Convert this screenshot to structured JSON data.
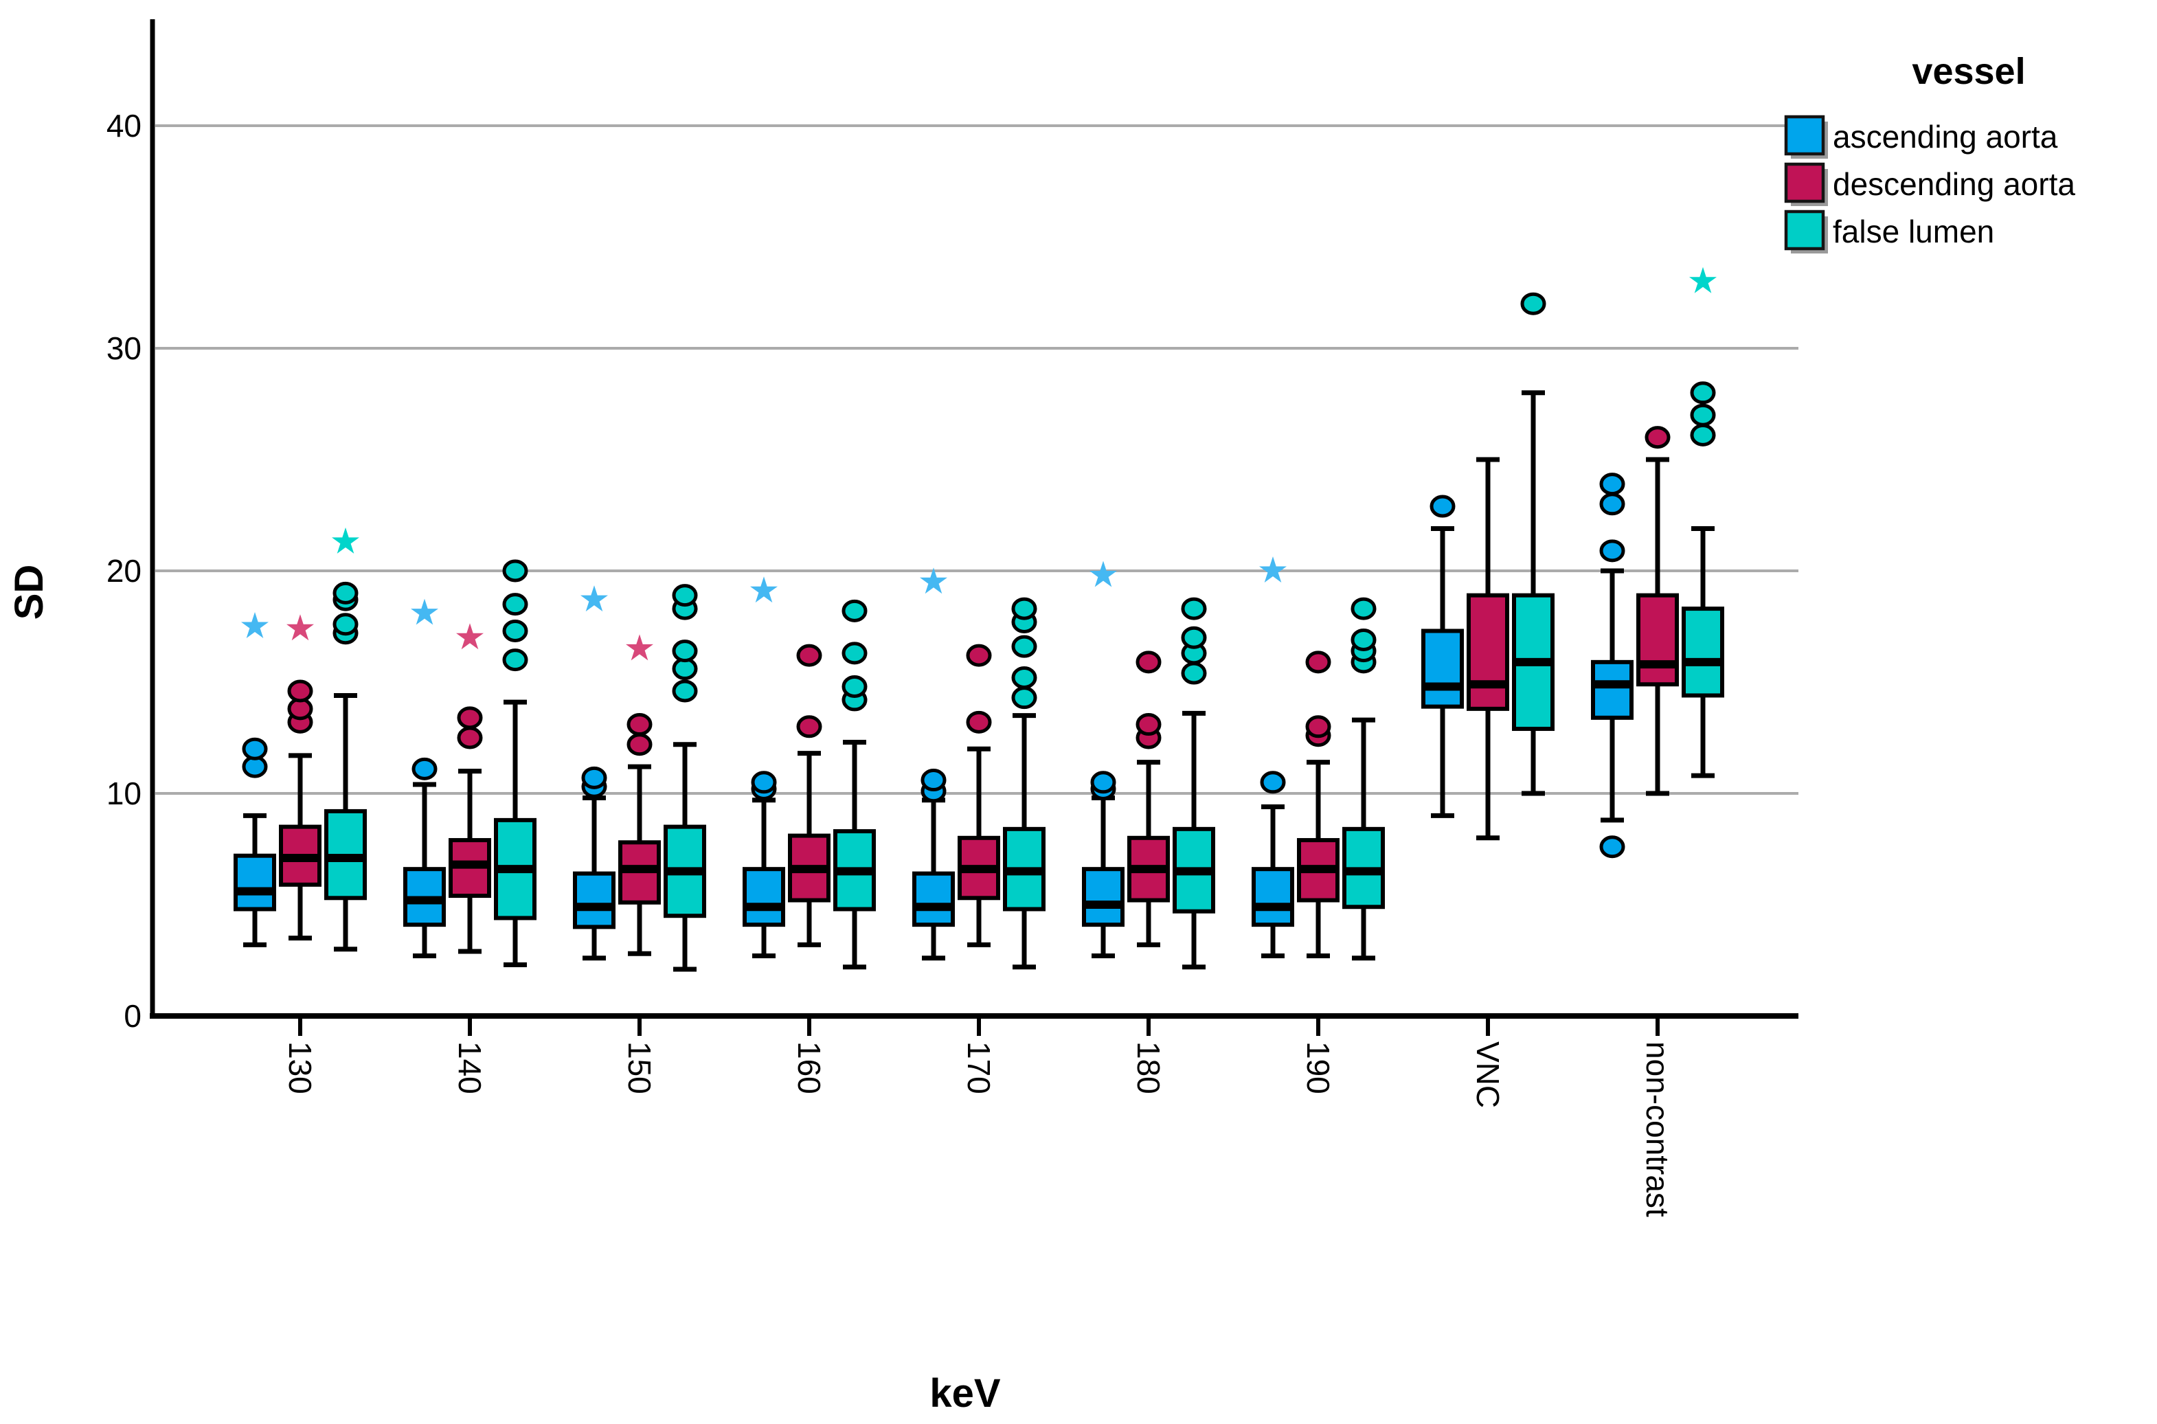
{
  "figure": {
    "background": "#ffffff"
  },
  "legend": {
    "title": "vessel",
    "items": [
      {
        "label": "ascending aorta",
        "color": "#00A5EC"
      },
      {
        "label": "descending aorta",
        "color": "#C01356"
      },
      {
        "label": "false lumen",
        "color": "#00CEC6"
      }
    ]
  },
  "chart_data": {
    "type": "box",
    "title": "",
    "xlabel": "keV",
    "ylabel": "SD",
    "ylim": [
      0,
      44
    ],
    "yticks": [
      0,
      10,
      20,
      30,
      40
    ],
    "ytick_labels": [
      "0",
      "10",
      "20",
      "30",
      "40"
    ],
    "grid": "horizontal",
    "gridline_color": "#ABABAB",
    "legend_position": "top-right",
    "categories": [
      "130",
      "140",
      "150",
      "160",
      "170",
      "180",
      "190",
      "VNC",
      "non-contrast"
    ],
    "series": [
      {
        "name": "ascending aorta",
        "color": "#00A5EC",
        "extreme_color": "#45B8F2",
        "boxes": [
          {
            "low": 3.2,
            "q1": 4.8,
            "median": 5.6,
            "q3": 7.2,
            "high": 9.0,
            "outliers": [
              11.2,
              12.0
            ],
            "extremes": [
              17.5
            ]
          },
          {
            "low": 2.7,
            "q1": 4.1,
            "median": 5.2,
            "q3": 6.6,
            "high": 10.4,
            "outliers": [
              11.1
            ],
            "extremes": [
              18.1
            ]
          },
          {
            "low": 2.6,
            "q1": 4.0,
            "median": 4.9,
            "q3": 6.4,
            "high": 9.8,
            "outliers": [
              10.3,
              10.7
            ],
            "extremes": [
              18.7
            ]
          },
          {
            "low": 2.7,
            "q1": 4.1,
            "median": 4.9,
            "q3": 6.6,
            "high": 9.7,
            "outliers": [
              10.2,
              10.5
            ],
            "extremes": [
              19.1
            ]
          },
          {
            "low": 2.6,
            "q1": 4.1,
            "median": 4.9,
            "q3": 6.4,
            "high": 9.7,
            "outliers": [
              10.1,
              10.6
            ],
            "extremes": [
              19.5
            ]
          },
          {
            "low": 2.7,
            "q1": 4.1,
            "median": 5.0,
            "q3": 6.6,
            "high": 9.8,
            "outliers": [
              10.2,
              10.5
            ],
            "extremes": [
              19.8
            ]
          },
          {
            "low": 2.7,
            "q1": 4.1,
            "median": 4.9,
            "q3": 6.6,
            "high": 9.4,
            "outliers": [
              10.5
            ],
            "extremes": [
              20.0
            ]
          },
          {
            "low": 9.0,
            "q1": 13.9,
            "median": 14.8,
            "q3": 17.3,
            "high": 21.9,
            "outliers": [
              22.9
            ],
            "extremes": []
          },
          {
            "low": 8.8,
            "q1": 13.4,
            "median": 14.9,
            "q3": 15.9,
            "high": 20.0,
            "outliers": [
              7.6,
              20.9,
              23.0,
              23.9
            ],
            "extremes": []
          }
        ]
      },
      {
        "name": "descending aorta",
        "color": "#C01356",
        "extreme_color": "#D8487A",
        "boxes": [
          {
            "low": 3.5,
            "q1": 5.9,
            "median": 7.1,
            "q3": 8.5,
            "high": 11.7,
            "outliers": [
              13.2,
              13.8,
              14.6
            ],
            "extremes": [
              17.4
            ]
          },
          {
            "low": 2.9,
            "q1": 5.4,
            "median": 6.8,
            "q3": 7.9,
            "high": 11.0,
            "outliers": [
              12.5,
              13.4
            ],
            "extremes": [
              17.0
            ]
          },
          {
            "low": 2.8,
            "q1": 5.1,
            "median": 6.6,
            "q3": 7.8,
            "high": 11.2,
            "outliers": [
              12.2,
              13.1
            ],
            "extremes": [
              16.5
            ]
          },
          {
            "low": 3.2,
            "q1": 5.2,
            "median": 6.6,
            "q3": 8.1,
            "high": 11.8,
            "outliers": [
              13.0,
              16.2
            ],
            "extremes": []
          },
          {
            "low": 3.2,
            "q1": 5.3,
            "median": 6.6,
            "q3": 8.0,
            "high": 12.0,
            "outliers": [
              13.2,
              16.2
            ],
            "extremes": []
          },
          {
            "low": 3.2,
            "q1": 5.2,
            "median": 6.6,
            "q3": 8.0,
            "high": 11.4,
            "outliers": [
              12.5,
              13.1,
              15.9
            ],
            "extremes": []
          },
          {
            "low": 2.7,
            "q1": 5.2,
            "median": 6.6,
            "q3": 7.9,
            "high": 11.4,
            "outliers": [
              12.6,
              13.0,
              15.9
            ],
            "extremes": []
          },
          {
            "low": 8.0,
            "q1": 13.8,
            "median": 14.9,
            "q3": 18.9,
            "high": 25.0,
            "outliers": [],
            "extremes": []
          },
          {
            "low": 10.0,
            "q1": 14.9,
            "median": 15.8,
            "q3": 18.9,
            "high": 25.0,
            "outliers": [
              26.0
            ],
            "extremes": []
          }
        ]
      },
      {
        "name": "false lumen",
        "color": "#00CEC6",
        "extreme_color": "#00D5CB",
        "boxes": [
          {
            "low": 3.0,
            "q1": 5.3,
            "median": 7.1,
            "q3": 9.2,
            "high": 14.4,
            "outliers": [
              17.2,
              17.6,
              18.7,
              19.0
            ],
            "extremes": [
              21.3
            ]
          },
          {
            "low": 2.3,
            "q1": 4.4,
            "median": 6.6,
            "q3": 8.8,
            "high": 14.1,
            "outliers": [
              16.0,
              17.3,
              18.5,
              20.0
            ],
            "extremes": []
          },
          {
            "low": 2.1,
            "q1": 4.5,
            "median": 6.5,
            "q3": 8.5,
            "high": 12.2,
            "outliers": [
              14.6,
              15.6,
              16.4,
              18.3,
              18.9
            ],
            "extremes": []
          },
          {
            "low": 2.2,
            "q1": 4.8,
            "median": 6.5,
            "q3": 8.3,
            "high": 12.3,
            "outliers": [
              14.2,
              14.8,
              16.3,
              18.2
            ],
            "extremes": []
          },
          {
            "low": 2.2,
            "q1": 4.8,
            "median": 6.5,
            "q3": 8.4,
            "high": 13.5,
            "outliers": [
              14.3,
              15.2,
              16.6,
              17.7,
              18.3
            ],
            "extremes": []
          },
          {
            "low": 2.2,
            "q1": 4.7,
            "median": 6.5,
            "q3": 8.4,
            "high": 13.6,
            "outliers": [
              15.4,
              16.3,
              17.0,
              18.3
            ],
            "extremes": []
          },
          {
            "low": 2.6,
            "q1": 4.9,
            "median": 6.5,
            "q3": 8.4,
            "high": 13.3,
            "outliers": [
              15.9,
              16.4,
              16.9,
              18.3
            ],
            "extremes": []
          },
          {
            "low": 10.0,
            "q1": 12.9,
            "median": 15.9,
            "q3": 18.9,
            "high": 28.0,
            "outliers": [
              32.0
            ],
            "extremes": []
          },
          {
            "low": 10.8,
            "q1": 14.4,
            "median": 15.9,
            "q3": 18.3,
            "high": 21.9,
            "outliers": [
              26.1,
              27.0,
              28.0
            ],
            "extremes": [
              33.0
            ]
          }
        ]
      }
    ]
  }
}
